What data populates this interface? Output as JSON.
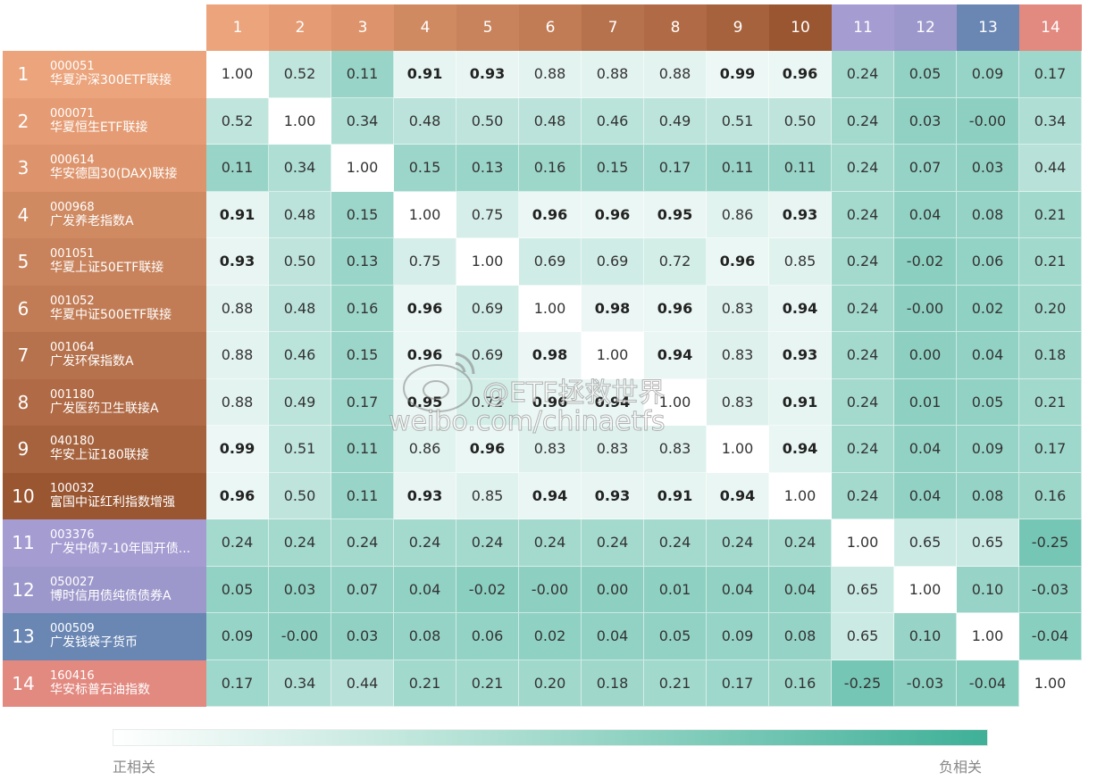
{
  "chart_data": {
    "type": "heatmap",
    "column_labels": [
      "1",
      "2",
      "3",
      "4",
      "5",
      "6",
      "7",
      "8",
      "9",
      "10",
      "11",
      "12",
      "13",
      "14"
    ],
    "header_colors": [
      "#eba47c",
      "#e59c74",
      "#dd946c",
      "#cf8a62",
      "#c8835c",
      "#c17c55",
      "#b6724c",
      "#b06a45",
      "#a5623d",
      "#9a5631",
      "#a59cd2",
      "#9d98cb",
      "#6a87b4",
      "#e28980"
    ],
    "rows": [
      {
        "num": "1",
        "code": "000051",
        "name": "华夏沪深300ETF联接",
        "color": "#eba47c"
      },
      {
        "num": "2",
        "code": "000071",
        "name": "华夏恒生ETF联接",
        "color": "#e59c74"
      },
      {
        "num": "3",
        "code": "000614",
        "name": "华安德国30(DAX)联接",
        "color": "#dd946c"
      },
      {
        "num": "4",
        "code": "000968",
        "name": "广发养老指数A",
        "color": "#cf8a62"
      },
      {
        "num": "5",
        "code": "001051",
        "name": "华夏上证50ETF联接",
        "color": "#c8835c"
      },
      {
        "num": "6",
        "code": "001052",
        "name": "华夏中证500ETF联接",
        "color": "#c17c55"
      },
      {
        "num": "7",
        "code": "001064",
        "name": "广发环保指数A",
        "color": "#b6724c"
      },
      {
        "num": "8",
        "code": "001180",
        "name": "广发医药卫生联接A",
        "color": "#b06a45"
      },
      {
        "num": "9",
        "code": "040180",
        "name": "华安上证180联接",
        "color": "#a5623d"
      },
      {
        "num": "10",
        "code": "100032",
        "name": "富国中证红利指数增强",
        "color": "#9a5631"
      },
      {
        "num": "11",
        "code": "003376",
        "name": "广发中债7-10年国开债...",
        "color": "#a59cd2"
      },
      {
        "num": "12",
        "code": "050027",
        "name": "博时信用债纯债债券A",
        "color": "#9d98cb"
      },
      {
        "num": "13",
        "code": "000509",
        "name": "广发钱袋子货币",
        "color": "#6a87b4"
      },
      {
        "num": "14",
        "code": "160416",
        "name": "华安标普石油指数",
        "color": "#e28980"
      }
    ],
    "values": [
      [
        "1.00",
        "0.52",
        "0.11",
        "0.91",
        "0.93",
        "0.88",
        "0.88",
        "0.88",
        "0.99",
        "0.96",
        "0.24",
        "0.05",
        "0.09",
        "0.17"
      ],
      [
        "0.52",
        "1.00",
        "0.34",
        "0.48",
        "0.50",
        "0.48",
        "0.46",
        "0.49",
        "0.51",
        "0.50",
        "0.24",
        "0.03",
        "-0.00",
        "0.34"
      ],
      [
        "0.11",
        "0.34",
        "1.00",
        "0.15",
        "0.13",
        "0.16",
        "0.15",
        "0.17",
        "0.11",
        "0.11",
        "0.24",
        "0.07",
        "0.03",
        "0.44"
      ],
      [
        "0.91",
        "0.48",
        "0.15",
        "1.00",
        "0.75",
        "0.96",
        "0.96",
        "0.95",
        "0.86",
        "0.93",
        "0.24",
        "0.04",
        "0.08",
        "0.21"
      ],
      [
        "0.93",
        "0.50",
        "0.13",
        "0.75",
        "1.00",
        "0.69",
        "0.69",
        "0.72",
        "0.96",
        "0.85",
        "0.24",
        "-0.02",
        "0.06",
        "0.21"
      ],
      [
        "0.88",
        "0.48",
        "0.16",
        "0.96",
        "0.69",
        "1.00",
        "0.98",
        "0.96",
        "0.83",
        "0.94",
        "0.24",
        "-0.00",
        "0.02",
        "0.20"
      ],
      [
        "0.88",
        "0.46",
        "0.15",
        "0.96",
        "0.69",
        "0.98",
        "1.00",
        "0.94",
        "0.83",
        "0.93",
        "0.24",
        "0.00",
        "0.04",
        "0.18"
      ],
      [
        "0.88",
        "0.49",
        "0.17",
        "0.95",
        "0.72",
        "0.96",
        "0.94",
        "1.00",
        "0.83",
        "0.91",
        "0.24",
        "0.01",
        "0.05",
        "0.21"
      ],
      [
        "0.99",
        "0.51",
        "0.11",
        "0.86",
        "0.96",
        "0.83",
        "0.83",
        "0.83",
        "1.00",
        "0.94",
        "0.24",
        "0.04",
        "0.09",
        "0.17"
      ],
      [
        "0.96",
        "0.50",
        "0.11",
        "0.93",
        "0.85",
        "0.94",
        "0.93",
        "0.91",
        "0.94",
        "1.00",
        "0.24",
        "0.04",
        "0.08",
        "0.16"
      ],
      [
        "0.24",
        "0.24",
        "0.24",
        "0.24",
        "0.24",
        "0.24",
        "0.24",
        "0.24",
        "0.24",
        "0.24",
        "1.00",
        "0.65",
        "0.65",
        "-0.25"
      ],
      [
        "0.05",
        "0.03",
        "0.07",
        "0.04",
        "-0.02",
        "-0.00",
        "0.00",
        "0.01",
        "0.04",
        "0.04",
        "0.65",
        "1.00",
        "0.10",
        "-0.03"
      ],
      [
        "0.09",
        "-0.00",
        "0.03",
        "0.08",
        "0.06",
        "0.02",
        "0.04",
        "0.05",
        "0.09",
        "0.08",
        "0.65",
        "0.10",
        "1.00",
        "-0.04"
      ],
      [
        "0.17",
        "0.34",
        "0.44",
        "0.21",
        "0.21",
        "0.20",
        "0.18",
        "0.21",
        "0.17",
        "0.16",
        "-0.25",
        "-0.03",
        "-0.04",
        "1.00"
      ]
    ],
    "bold_threshold": 0.9,
    "legend": {
      "left": "正相关",
      "right": "负相关"
    },
    "colors": {
      "high": "#ffffff",
      "low": "#3fb098"
    }
  },
  "watermark": {
    "line1": "@ETF拯救世界",
    "line2": "weibo.com/chinaetfs"
  }
}
